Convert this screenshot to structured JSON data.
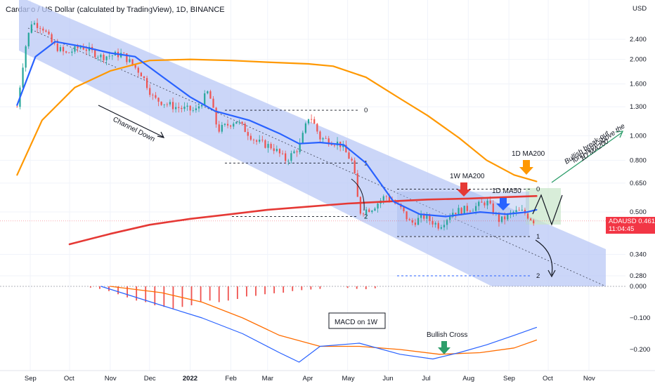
{
  "header": {
    "title": "Cardano / US Dollar (calculated by TradingView), 1D, BINANCE"
  },
  "colors": {
    "channel": "#b9c8f5",
    "ma50": "#2962ff",
    "ma200": "#ff9800",
    "w1_ma200": "#e53935",
    "macd": "#2962ff",
    "signal": "#ff6d00",
    "hist_neg": "#ef5350",
    "up": "#26a69a",
    "down": "#ef5350",
    "green_zone": "#c8e6c9",
    "arrow_green": "#2e9e6b"
  },
  "chart_data": [
    {
      "type": "line",
      "title": "Cardano / US Dollar (calculated by TradingView), 1D, BINANCE",
      "ylabel": "USD",
      "y_scale": "log",
      "ylim": [
        0.24,
        3.2
      ],
      "y_ticks": [
        "2.400",
        "2.000",
        "1.600",
        "1.300",
        "1.000",
        "0.800",
        "0.650",
        "0.500",
        "0.340",
        "0.280"
      ],
      "x_ticks": [
        "Sep",
        "Oct",
        "Nov",
        "Dec",
        "2022",
        "Feb",
        "Mar",
        "Apr",
        "May",
        "Jun",
        "Jul",
        "Aug",
        "Sep",
        "Oct",
        "Nov"
      ],
      "last_price": {
        "symbol": "ADAUSD",
        "value": "0.461",
        "countdown": "11:04:45"
      },
      "series": [
        {
          "name": "1D MA50",
          "points": [
            [
              "Aug 22",
              1.32
            ],
            [
              "Sep 5",
              2.05
            ],
            [
              "Sep 20",
              2.35
            ],
            [
              "Oct 10",
              2.25
            ],
            [
              "Nov 1",
              2.12
            ],
            [
              "Nov 20",
              2.05
            ],
            [
              "Dec 10",
              1.72
            ],
            [
              "Jan 1",
              1.42
            ],
            [
              "Jan 20",
              1.25
            ],
            [
              "Feb 15",
              1.15
            ],
            [
              "Mar 10",
              1.02
            ],
            [
              "Mar 25",
              0.93
            ],
            [
              "Apr 10",
              0.94
            ],
            [
              "Apr 28",
              0.92
            ],
            [
              "May 15",
              0.78
            ],
            [
              "Jun 5",
              0.55
            ],
            [
              "Jun 25",
              0.49
            ],
            [
              "Jul 15",
              0.48
            ],
            [
              "Aug 10",
              0.5
            ],
            [
              "Aug 30",
              0.49
            ],
            [
              "Sep 15",
              0.5
            ],
            [
              "Sep 22",
              0.51
            ]
          ]
        },
        {
          "name": "1D MA200",
          "points": [
            [
              "Aug 22",
              0.7
            ],
            [
              "Sep 10",
              1.15
            ],
            [
              "Oct 5",
              1.55
            ],
            [
              "Nov 1",
              1.8
            ],
            [
              "Dec 1",
              1.98
            ],
            [
              "Jan 1",
              2.0
            ],
            [
              "Feb 1",
              1.98
            ],
            [
              "Mar 1",
              1.95
            ],
            [
              "Apr 1",
              1.92
            ],
            [
              "Apr 20",
              1.88
            ],
            [
              "May 15",
              1.7
            ],
            [
              "Jun 10",
              1.4
            ],
            [
              "Jul 1",
              1.2
            ],
            [
              "Jul 25",
              0.98
            ],
            [
              "Aug 15",
              0.8
            ],
            [
              "Sep 5",
              0.7
            ],
            [
              "Sep 22",
              0.66
            ]
          ]
        },
        {
          "name": "1W MA200",
          "points": [
            [
              "Oct 1",
              0.373
            ],
            [
              "Nov 1",
              0.41
            ],
            [
              "Dec 1",
              0.445
            ],
            [
              "Jan 1",
              0.47
            ],
            [
              "Feb 1",
              0.49
            ],
            [
              "Mar 1",
              0.51
            ],
            [
              "Apr 1",
              0.525
            ],
            [
              "May 1",
              0.54
            ],
            [
              "Jun 1",
              0.55
            ],
            [
              "Jul 1",
              0.56
            ],
            [
              "Aug 1",
              0.565
            ],
            [
              "Sep 1",
              0.573
            ],
            [
              "Sep 22",
              0.578
            ]
          ]
        },
        {
          "name": "ADAUSD",
          "points": [
            [
              "Aug 22",
              1.3
            ],
            [
              "Aug 28",
              2.2
            ],
            [
              "Sep 2",
              2.8
            ],
            [
              "Sep 10",
              2.7
            ],
            [
              "Sep 18",
              2.3
            ],
            [
              "Sep 28",
              2.1
            ],
            [
              "Oct 10",
              2.25
            ],
            [
              "Oct 25",
              2.05
            ],
            [
              "Nov 10",
              2.1
            ],
            [
              "Nov 25",
              1.75
            ],
            [
              "Dec 4",
              1.4
            ],
            [
              "Dec 20",
              1.3
            ],
            [
              "Jan 5",
              1.25
            ],
            [
              "Jan 15",
              1.5
            ],
            [
              "Jan 22",
              1.05
            ],
            [
              "Feb 5",
              1.15
            ],
            [
              "Feb 20",
              0.95
            ],
            [
              "Mar 5",
              0.9
            ],
            [
              "Mar 15",
              0.8
            ],
            [
              "Mar 25",
              0.9
            ],
            [
              "Apr 2",
              1.22
            ],
            [
              "Apr 10",
              0.98
            ],
            [
              "Apr 25",
              0.93
            ],
            [
              "May 5",
              0.78
            ],
            [
              "May 10",
              0.5
            ],
            [
              "May 20",
              0.52
            ],
            [
              "May 30",
              0.58
            ],
            [
              "Jun 10",
              0.52
            ],
            [
              "Jun 18",
              0.45
            ],
            [
              "Jun 28",
              0.48
            ],
            [
              "Jul 10",
              0.44
            ],
            [
              "Jul 20",
              0.5
            ],
            [
              "Aug 5",
              0.52
            ],
            [
              "Aug 15",
              0.55
            ],
            [
              "Aug 25",
              0.46
            ],
            [
              "Sep 5",
              0.5
            ],
            [
              "Sep 12",
              0.5
            ],
            [
              "Sep 20",
              0.461
            ]
          ]
        }
      ],
      "fibonacci": [
        {
          "label": "0",
          "value": 1.26
        },
        {
          "label": "1",
          "value": 0.78
        },
        {
          "label": "2",
          "value": 0.48
        },
        {
          "label": "0",
          "value": 0.615
        },
        {
          "label": "1",
          "value": 0.4
        },
        {
          "label": "2",
          "value": 0.28
        }
      ],
      "annotations": [
        "Channel Down",
        "1W MA200",
        "1D MA200",
        "1D MA50",
        "Bullish break-out long-term above the 1D MA200"
      ]
    },
    {
      "type": "line",
      "title": "MACD on 1W",
      "ylim": [
        -0.24,
        0.0
      ],
      "y_ticks": [
        "0.000",
        "−0.100",
        "−0.200"
      ],
      "series": [
        {
          "name": "MACD",
          "points": [
            [
              "Oct 25",
              0.0
            ],
            [
              "Dec 10",
              -0.06
            ],
            [
              "Jan 10",
              -0.1
            ],
            [
              "Feb 10",
              -0.15
            ],
            [
              "Mar 10",
              -0.21
            ],
            [
              "Mar 25",
              -0.24
            ],
            [
              "Apr 10",
              -0.19
            ],
            [
              "May 10",
              -0.18
            ],
            [
              "Jun 10",
              -0.215
            ],
            [
              "Jul 5",
              -0.23
            ],
            [
              "Jul 25",
              -0.21
            ],
            [
              "Aug 15",
              -0.185
            ],
            [
              "Sep 5",
              -0.155
            ],
            [
              "Sep 22",
              -0.13
            ]
          ]
        },
        {
          "name": "Signal",
          "points": [
            [
              "Nov 1",
              0.0
            ],
            [
              "Dec 10",
              -0.02
            ],
            [
              "Jan 10",
              -0.05
            ],
            [
              "Feb 10",
              -0.1
            ],
            [
              "Mar 10",
              -0.155
            ],
            [
              "Apr 10",
              -0.19
            ],
            [
              "May 10",
              -0.19
            ],
            [
              "Jun 10",
              -0.2
            ],
            [
              "Jul 10",
              -0.215
            ],
            [
              "Aug 10",
              -0.21
            ],
            [
              "Sep 5",
              -0.195
            ],
            [
              "Sep 22",
              -0.17
            ]
          ]
        },
        {
          "name": "Histogram",
          "points": [
            [
              "Oct 17",
              -0.004
            ],
            [
              "Oct 24",
              -0.008
            ],
            [
              "Oct 31",
              -0.015
            ],
            [
              "Nov 7",
              -0.025
            ],
            [
              "Nov 14",
              -0.035
            ],
            [
              "Nov 21",
              -0.045
            ],
            [
              "Nov 28",
              -0.05
            ],
            [
              "Dec 5",
              -0.06
            ],
            [
              "Dec 12",
              -0.065
            ],
            [
              "Dec 19",
              -0.07
            ],
            [
              "Dec 26",
              -0.065
            ],
            [
              "Jan 2",
              -0.06
            ],
            [
              "Jan 9",
              -0.05
            ],
            [
              "Jan 16",
              -0.045
            ],
            [
              "Jan 23",
              -0.05
            ],
            [
              "Jan 30",
              -0.045
            ],
            [
              "Feb 6",
              -0.04
            ],
            [
              "Feb 13",
              -0.032
            ],
            [
              "Feb 20",
              -0.03
            ],
            [
              "Feb 27",
              -0.025
            ],
            [
              "Mar 6",
              -0.022
            ],
            [
              "Mar 13",
              -0.02
            ],
            [
              "Mar 20",
              -0.015
            ],
            [
              "Mar 27",
              -0.012
            ],
            [
              "Apr 3",
              -0.01
            ],
            [
              "Apr 10",
              -0.008
            ],
            [
              "May 1",
              -0.005
            ],
            [
              "May 8",
              -0.008
            ],
            [
              "May 15",
              -0.009
            ],
            [
              "May 22",
              -0.006
            ]
          ]
        }
      ],
      "annotations": [
        "Bullish Cross"
      ]
    }
  ]
}
